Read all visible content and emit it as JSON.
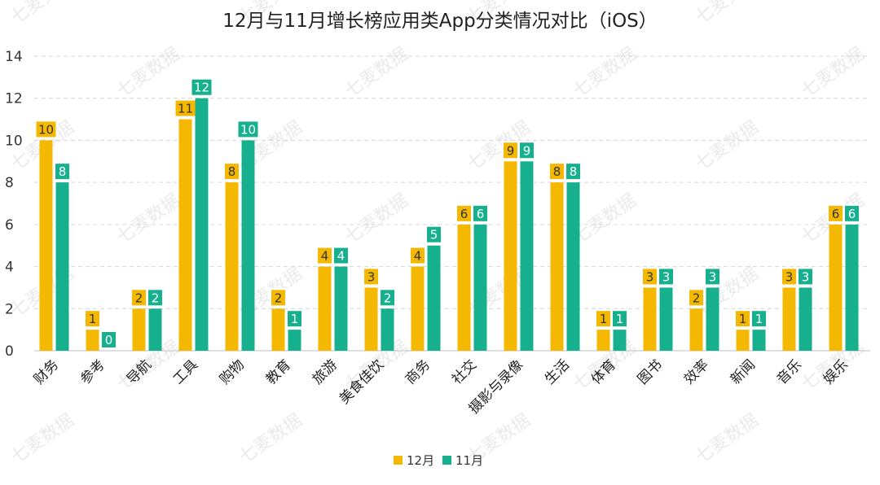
{
  "chart_data": {
    "type": "bar",
    "title": "12月与11月增长榜应用类App分类情况对比（iOS）",
    "watermark": "七麦数据",
    "categories": [
      "财务",
      "参考",
      "导航",
      "工具",
      "购物",
      "教育",
      "旅游",
      "美食佳饮",
      "商务",
      "社交",
      "摄影与录像",
      "生活",
      "体育",
      "图书",
      "效率",
      "新闻",
      "音乐",
      "娱乐"
    ],
    "series": [
      {
        "name": "12月",
        "color": "#f5b800",
        "values": [
          10,
          1,
          2,
          11,
          8,
          2,
          4,
          3,
          4,
          6,
          9,
          8,
          1,
          3,
          2,
          1,
          3,
          6
        ]
      },
      {
        "name": "11月",
        "color": "#16b08f",
        "values": [
          8,
          0,
          2,
          12,
          10,
          1,
          4,
          2,
          5,
          6,
          9,
          8,
          1,
          3,
          3,
          1,
          3,
          6
        ]
      }
    ],
    "ylim": [
      0,
      14
    ],
    "yticks": [
      0,
      2,
      4,
      6,
      8,
      10,
      12,
      14
    ],
    "grid": true,
    "legend_position": "bottom-center"
  }
}
